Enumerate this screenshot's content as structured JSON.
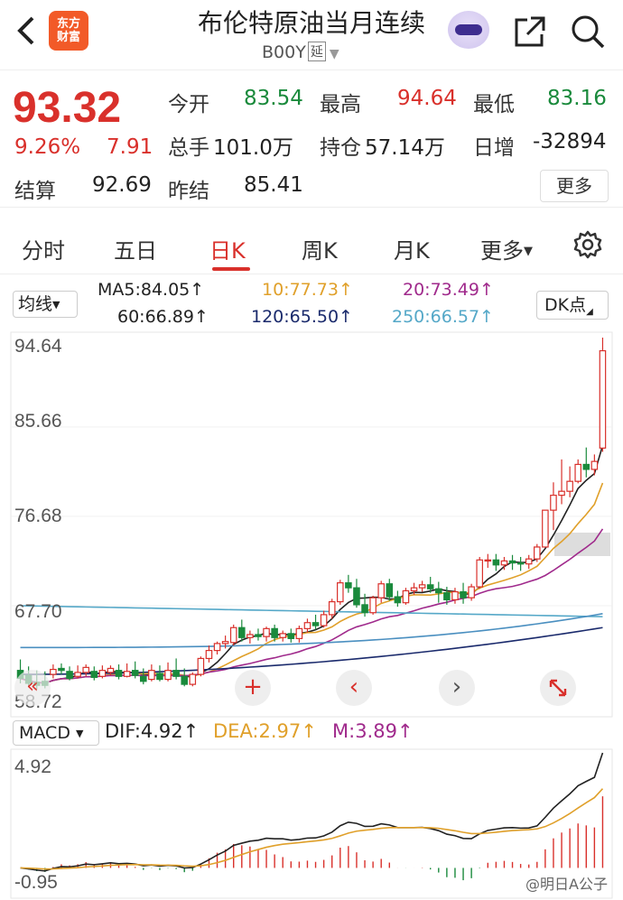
{
  "header": {
    "back_icon": "chevron-left-icon",
    "logo_text_line1": "东方",
    "logo_text_line2": "财富",
    "title": "布伦特原油当月连续",
    "code": "B00Y",
    "code_tag": "延",
    "share_icon": "share-icon",
    "search_icon": "search-icon"
  },
  "quote": {
    "price": "93.32",
    "change_pct": "9.26%",
    "change": "7.91",
    "open_label": "今开",
    "open": "83.54",
    "high_label": "最高",
    "high": "94.64",
    "low_label": "最低",
    "low": "83.16",
    "volume_label": "总手",
    "volume": "101.0万",
    "position_label": "持仓",
    "position": "57.14万",
    "daily_inc_label": "日增",
    "daily_inc": "-32894",
    "settle_label": "结算",
    "settle": "92.69",
    "prev_settle_label": "昨结",
    "prev_settle": "85.41",
    "more_label": "更多"
  },
  "tabs": [
    {
      "label": "分时"
    },
    {
      "label": "五日"
    },
    {
      "label": "日K"
    },
    {
      "label": "周K"
    },
    {
      "label": "月K"
    },
    {
      "label": "更多"
    }
  ],
  "active_tab": "日K",
  "ma": {
    "button_label": "均线",
    "ma5": "MA5:84.05↑",
    "ma10": "10:77.73↑",
    "ma20": "20:73.49↑",
    "ma60": "60:66.89↑",
    "ma120": "120:65.50↑",
    "ma250": "250:66.57↑",
    "dk_label": "DK点"
  },
  "kline_axis": {
    "labels": [
      "94.64",
      "85.66",
      "76.68",
      "67.70",
      "58.72"
    ]
  },
  "macd": {
    "button_label": "MACD",
    "dif": "DIF:4.92↑",
    "dea": "DEA:2.97↑",
    "m": "M:3.89↑",
    "axis_top": "4.92",
    "axis_bottom": "-0.95"
  },
  "controls": {
    "add": "+",
    "prev": "‹",
    "next": "›",
    "expand_icon": "expand-icon"
  },
  "watermark": "@明日A公子",
  "colors": {
    "up": "#d9302b",
    "down": "#1a8a3c",
    "ma5": "#222222",
    "ma10": "#e0a02a",
    "ma20": "#a02a8c",
    "ma60": "#4a8fc0",
    "ma120": "#1a2a6c",
    "ma250": "#55a8c8"
  },
  "chart_data": {
    "type": "candlestick",
    "ylim": [
      58.72,
      94.64
    ],
    "candles": [
      [
        61.2,
        62.3,
        60.4,
        59.9
      ],
      [
        60.7,
        61.6,
        59.9,
        59.6
      ],
      [
        60.0,
        61.2,
        59.7,
        59.3
      ],
      [
        60.1,
        61.1,
        59.7,
        59.4
      ],
      [
        60.8,
        61.8,
        61.3,
        60.4
      ],
      [
        61.4,
        61.9,
        61.2,
        60.8
      ],
      [
        61.1,
        61.6,
        60.4,
        60.2
      ],
      [
        60.6,
        61.7,
        61.0,
        60.4
      ],
      [
        61.0,
        61.8,
        61.5,
        60.6
      ],
      [
        61.1,
        61.6,
        60.5,
        60.2
      ],
      [
        60.6,
        61.7,
        61.2,
        60.4
      ],
      [
        61.0,
        61.7,
        61.4,
        60.7
      ],
      [
        61.2,
        61.8,
        60.6,
        60.3
      ],
      [
        60.6,
        61.9,
        61.1,
        60.5
      ],
      [
        61.2,
        62.1,
        60.7,
        60.4
      ],
      [
        60.6,
        61.4,
        60.1,
        59.8
      ],
      [
        60.3,
        61.8,
        61.2,
        60.1
      ],
      [
        60.9,
        61.7,
        60.3,
        60.1
      ],
      [
        60.3,
        62.0,
        61.2,
        60.1
      ],
      [
        61.2,
        62.4,
        60.6,
        60.3
      ],
      [
        60.6,
        61.4,
        59.8,
        59.6
      ],
      [
        59.8,
        61.0,
        60.8,
        59.6
      ],
      [
        60.8,
        62.6,
        62.4,
        60.6
      ],
      [
        62.4,
        63.7,
        63.2,
        62.0
      ],
      [
        63.2,
        64.1,
        63.9,
        62.8
      ],
      [
        63.9,
        64.7,
        64.1,
        63.4
      ],
      [
        64.0,
        65.8,
        65.5,
        63.7
      ],
      [
        65.5,
        66.3,
        64.5,
        64.1
      ],
      [
        64.5,
        65.2,
        64.8,
        63.9
      ],
      [
        64.8,
        65.4,
        64.6,
        64.2
      ],
      [
        64.6,
        65.6,
        65.4,
        64.1
      ],
      [
        65.4,
        65.8,
        64.5,
        64.1
      ],
      [
        64.5,
        65.2,
        64.9,
        64.1
      ],
      [
        64.9,
        65.4,
        64.4,
        64.0
      ],
      [
        64.4,
        65.7,
        65.4,
        64.0
      ],
      [
        65.4,
        66.4,
        66.0,
        65.0
      ],
      [
        66.0,
        66.8,
        65.7,
        65.3
      ],
      [
        65.7,
        67.2,
        66.8,
        65.5
      ],
      [
        66.8,
        68.4,
        68.1,
        66.4
      ],
      [
        68.1,
        70.3,
        70.0,
        67.8
      ],
      [
        70.0,
        70.8,
        69.5,
        69.0
      ],
      [
        69.5,
        70.4,
        67.8,
        67.5
      ],
      [
        67.8,
        68.9,
        67.0,
        66.6
      ],
      [
        67.0,
        68.7,
        68.5,
        66.8
      ],
      [
        68.5,
        70.2,
        69.9,
        68.0
      ],
      [
        69.9,
        70.4,
        68.6,
        68.2
      ],
      [
        68.6,
        69.2,
        68.0,
        67.6
      ],
      [
        68.0,
        69.5,
        69.2,
        67.8
      ],
      [
        69.2,
        70.0,
        69.5,
        68.8
      ],
      [
        69.5,
        70.2,
        69.8,
        69.1
      ],
      [
        69.8,
        70.6,
        69.4,
        69.0
      ],
      [
        69.4,
        70.1,
        69.0,
        68.0
      ],
      [
        69.0,
        69.6,
        68.3,
        67.8
      ],
      [
        68.3,
        69.5,
        69.1,
        67.9
      ],
      [
        69.1,
        70.0,
        68.5,
        67.9
      ],
      [
        68.5,
        69.9,
        69.6,
        68.2
      ],
      [
        69.6,
        72.6,
        72.3,
        69.4
      ],
      [
        72.3,
        72.9,
        72.3,
        71.5
      ],
      [
        72.3,
        72.9,
        71.8,
        71.2
      ],
      [
        71.8,
        72.6,
        72.2,
        71.3
      ],
      [
        72.2,
        72.8,
        72.0,
        71.3
      ],
      [
        72.0,
        72.6,
        71.9,
        71.2
      ],
      [
        71.9,
        72.8,
        72.4,
        71.4
      ],
      [
        72.4,
        73.9,
        73.6,
        72.1
      ],
      [
        73.6,
        74.0,
        77.3,
        75.1
      ],
      [
        77.3,
        80.1,
        78.8,
        75.3
      ],
      [
        78.8,
        82.4,
        79.2,
        77.9
      ],
      [
        79.2,
        81.7,
        80.2,
        78.6
      ],
      [
        80.2,
        82.4,
        81.9,
        80.0
      ],
      [
        81.9,
        83.6,
        81.4,
        80.6
      ],
      [
        81.4,
        82.9,
        82.2,
        80.8
      ],
      [
        83.54,
        94.64,
        93.32,
        83.16
      ]
    ]
  }
}
